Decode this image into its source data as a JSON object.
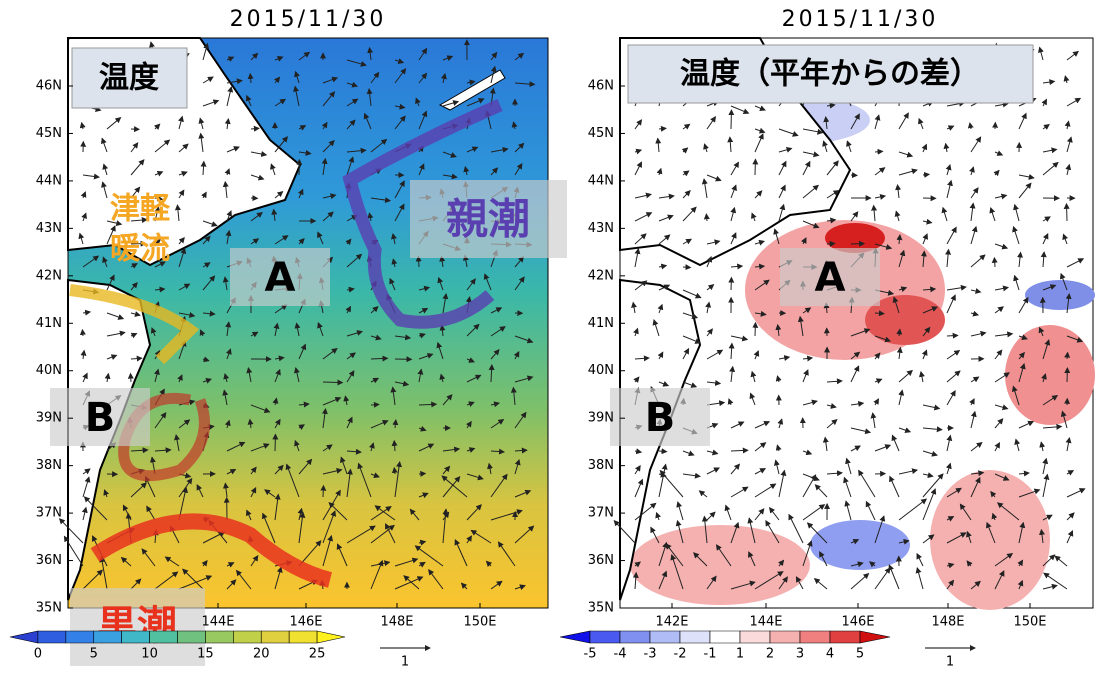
{
  "panels": [
    {
      "date": "2015/11/30",
      "label": "温度",
      "lat_ticks": [
        "46N",
        "45N",
        "44N",
        "43N",
        "42N",
        "41N",
        "40N",
        "39N",
        "38N",
        "37N",
        "36N",
        "35N"
      ],
      "lon_ticks": [
        "144E",
        "146E",
        "148E",
        "150E"
      ],
      "colorbar_ticks": [
        0,
        5,
        10,
        15,
        20,
        25
      ],
      "vector_scale": "1",
      "annotations": {
        "tsugaru_1": "津軽",
        "tsugaru_2": "暖流",
        "a": "A",
        "b": "B",
        "oyashio": "親潮",
        "kuroshio": "黒潮"
      }
    },
    {
      "date": "2015/11/30",
      "label": "温度（平年からの差）",
      "lat_ticks": [
        "46N",
        "45N",
        "44N",
        "43N",
        "42N",
        "41N",
        "40N",
        "39N",
        "38N",
        "37N",
        "36N",
        "35N"
      ],
      "lon_ticks": [
        "142E",
        "144E",
        "146E",
        "148E",
        "150E"
      ],
      "colorbar_ticks": [
        -5,
        -4,
        -3,
        -2,
        -1,
        1,
        2,
        3,
        4,
        5
      ],
      "vector_scale": "1",
      "annotations": {
        "a": "A",
        "b": "B"
      }
    }
  ]
}
